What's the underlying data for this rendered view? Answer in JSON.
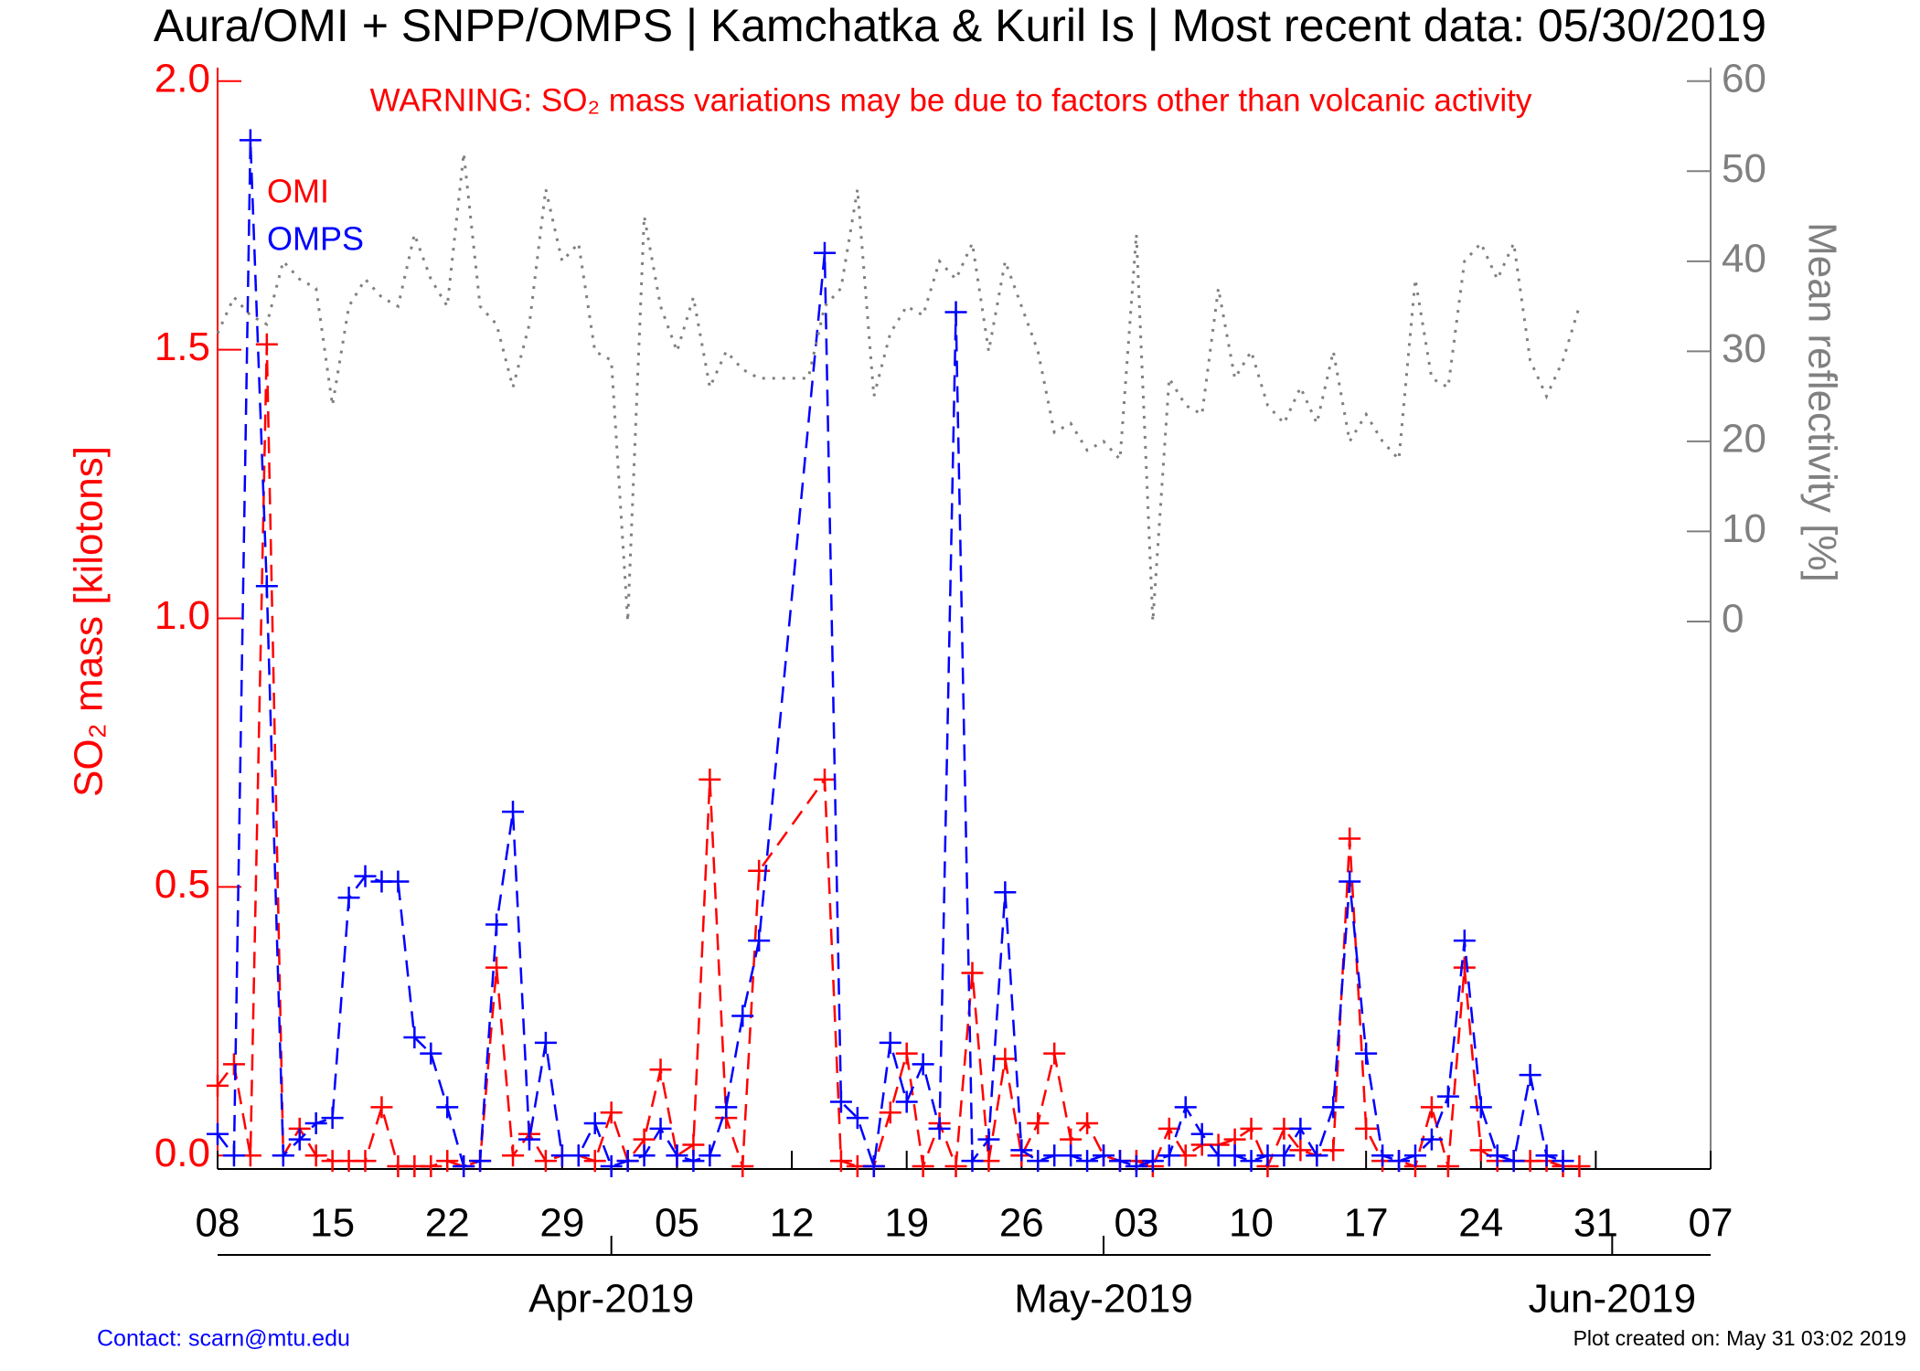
{
  "chart_data": {
    "type": "line",
    "title": "Aura/OMI + SNPP/OMPS | Kamchatka & Kuril Is | Most recent data: 05/30/2019",
    "annotation": "WARNING: SO₂ mass variations may be due to factors other than volcanic activity",
    "ylabel": "SO₂ mass [kilotons]",
    "y2label": "Mean reflectivity [%]",
    "footer_left": "Contact: scarn@mtu.edu",
    "footer_right": "Plot created on: May 31 03:02 2019",
    "xlim": [
      "2019-03-08",
      "2019-06-07"
    ],
    "xticks": [
      {
        "value": "2019-03-08",
        "label": "08"
      },
      {
        "value": "2019-03-15",
        "label": "15"
      },
      {
        "value": "2019-03-22",
        "label": "22"
      },
      {
        "value": "2019-03-29",
        "label": "29"
      },
      {
        "value": "2019-04-05",
        "label": "05"
      },
      {
        "value": "2019-04-12",
        "label": "12"
      },
      {
        "value": "2019-04-19",
        "label": "19"
      },
      {
        "value": "2019-04-26",
        "label": "26"
      },
      {
        "value": "2019-05-03",
        "label": "03"
      },
      {
        "value": "2019-05-10",
        "label": "10"
      },
      {
        "value": "2019-05-17",
        "label": "17"
      },
      {
        "value": "2019-05-24",
        "label": "24"
      },
      {
        "value": "2019-05-31",
        "label": "31"
      },
      {
        "value": "2019-06-07",
        "label": "07"
      }
    ],
    "month_ticks": [
      {
        "value": "2019-04-01",
        "label": "Apr-2019"
      },
      {
        "value": "2019-05-01",
        "label": "May-2019"
      },
      {
        "value": "2019-06-01",
        "label": "Jun-2019"
      }
    ],
    "ylim": [
      -0.025,
      2.025
    ],
    "yticks": [
      {
        "value": 0,
        "label": "0.0"
      },
      0.5,
      {
        "value": 1,
        "label": "1.0"
      },
      1.5,
      {
        "value": 2,
        "label": "2.0"
      }
    ],
    "y2lim": [
      -60.8,
      61.5
    ],
    "y2ticks": [
      0,
      10,
      20,
      30,
      40,
      50,
      60
    ],
    "ycolor": "#ff0000",
    "y2color": "#808080",
    "series": [
      {
        "name": "OMI",
        "color": "#ff0000",
        "dash": "dashed",
        "marker": "+",
        "x": [
          "2019-03-08",
          "2019-03-09",
          "2019-03-10",
          "2019-03-11",
          "2019-03-12",
          "2019-03-13",
          "2019-03-14",
          "2019-03-15",
          "2019-03-16",
          "2019-03-17",
          "2019-03-18",
          "2019-03-19",
          "2019-03-20",
          "2019-03-21",
          "2019-03-22",
          "2019-03-23",
          "2019-03-24",
          "2019-03-25",
          "2019-03-26",
          "2019-03-27",
          "2019-03-28",
          "2019-03-29",
          "2019-03-30",
          "2019-03-31",
          "2019-04-01",
          "2019-04-02",
          "2019-04-03",
          "2019-04-04",
          "2019-04-05",
          "2019-04-06",
          "2019-04-07",
          "2019-04-08",
          "2019-04-09",
          "2019-04-10",
          "2019-04-14",
          "2019-04-15",
          "2019-04-16",
          "2019-04-17",
          "2019-04-18",
          "2019-04-19",
          "2019-04-20",
          "2019-04-21",
          "2019-04-22",
          "2019-04-23",
          "2019-04-24",
          "2019-04-25",
          "2019-04-26",
          "2019-04-27",
          "2019-04-28",
          "2019-04-29",
          "2019-04-30",
          "2019-05-01",
          "2019-05-02",
          "2019-05-03",
          "2019-05-04",
          "2019-05-05",
          "2019-05-06",
          "2019-05-07",
          "2019-05-08",
          "2019-05-09",
          "2019-05-10",
          "2019-05-11",
          "2019-05-12",
          "2019-05-13",
          "2019-05-14",
          "2019-05-15",
          "2019-05-16",
          "2019-05-17",
          "2019-05-18",
          "2019-05-19",
          "2019-05-20",
          "2019-05-21",
          "2019-05-22",
          "2019-05-23",
          "2019-05-24",
          "2019-05-25",
          "2019-05-26",
          "2019-05-27",
          "2019-05-28",
          "2019-05-29",
          "2019-05-30"
        ],
        "values": [
          0.13,
          0.17,
          0.0,
          1.51,
          0.0,
          0.05,
          0.0,
          -0.01,
          -0.01,
          -0.01,
          0.09,
          -0.02,
          -0.02,
          -0.02,
          -0.01,
          -0.02,
          -0.01,
          0.35,
          0.0,
          0.04,
          -0.01,
          0.0,
          0.0,
          -0.01,
          0.08,
          -0.01,
          0.03,
          0.16,
          0.0,
          0.02,
          0.7,
          0.07,
          -0.02,
          0.53,
          0.7,
          -0.01,
          -0.02,
          -0.02,
          0.08,
          0.19,
          -0.02,
          0.06,
          -0.02,
          0.34,
          -0.01,
          0.18,
          0.0,
          0.06,
          0.19,
          0.03,
          0.06,
          0.0,
          -0.01,
          -0.01,
          -0.02,
          0.05,
          0.0,
          0.02,
          0.02,
          0.03,
          0.05,
          -0.02,
          0.05,
          0.01,
          0.0,
          0.01,
          0.59,
          0.05,
          -0.01,
          -0.01,
          -0.02,
          0.09,
          -0.02,
          0.35,
          0.01,
          -0.01,
          -0.01,
          -0.01,
          -0.01,
          -0.02,
          -0.02
        ]
      },
      {
        "name": "OMPS",
        "color": "#0000ff",
        "dash": "dashed",
        "marker": "+",
        "x": [
          "2019-03-08",
          "2019-03-09",
          "2019-03-10",
          "2019-03-11",
          "2019-03-12",
          "2019-03-13",
          "2019-03-14",
          "2019-03-15",
          "2019-03-16",
          "2019-03-17",
          "2019-03-18",
          "2019-03-19",
          "2019-03-20",
          "2019-03-21",
          "2019-03-22",
          "2019-03-23",
          "2019-03-24",
          "2019-03-25",
          "2019-03-26",
          "2019-03-27",
          "2019-03-28",
          "2019-03-29",
          "2019-03-30",
          "2019-03-31",
          "2019-04-01",
          "2019-04-02",
          "2019-04-03",
          "2019-04-04",
          "2019-04-05",
          "2019-04-06",
          "2019-04-07",
          "2019-04-08",
          "2019-04-09",
          "2019-04-10",
          "2019-04-14",
          "2019-04-15",
          "2019-04-16",
          "2019-04-17",
          "2019-04-18",
          "2019-04-19",
          "2019-04-20",
          "2019-04-21",
          "2019-04-22",
          "2019-04-23",
          "2019-04-24",
          "2019-04-25",
          "2019-04-26",
          "2019-04-27",
          "2019-04-28",
          "2019-04-29",
          "2019-04-30",
          "2019-05-01",
          "2019-05-02",
          "2019-05-03",
          "2019-05-04",
          "2019-05-05",
          "2019-05-06",
          "2019-05-07",
          "2019-05-08",
          "2019-05-09",
          "2019-05-10",
          "2019-05-11",
          "2019-05-12",
          "2019-05-13",
          "2019-05-14",
          "2019-05-15",
          "2019-05-16",
          "2019-05-17",
          "2019-05-18",
          "2019-05-19",
          "2019-05-20",
          "2019-05-21",
          "2019-05-22",
          "2019-05-23",
          "2019-05-24",
          "2019-05-25",
          "2019-05-26",
          "2019-05-27",
          "2019-05-28",
          "2019-05-29"
        ],
        "values": [
          0.04,
          0.0,
          1.89,
          1.06,
          0.0,
          0.03,
          0.06,
          0.07,
          0.48,
          0.52,
          0.51,
          0.51,
          0.22,
          0.19,
          0.09,
          -0.02,
          -0.01,
          0.43,
          0.64,
          0.03,
          0.21,
          0.0,
          0.0,
          0.06,
          -0.02,
          -0.01,
          0.0,
          0.05,
          0.0,
          -0.01,
          0.0,
          0.09,
          0.26,
          0.4,
          1.68,
          0.1,
          0.07,
          -0.02,
          0.21,
          0.1,
          0.17,
          0.05,
          1.57,
          -0.01,
          0.03,
          0.49,
          0.01,
          -0.01,
          0.0,
          0.0,
          -0.01,
          0.0,
          -0.01,
          -0.02,
          -0.01,
          0.0,
          0.09,
          0.04,
          0.0,
          0.0,
          -0.01,
          0.0,
          0.0,
          0.05,
          0.0,
          0.09,
          0.51,
          0.19,
          0.0,
          -0.01,
          0.0,
          0.03,
          0.11,
          0.4,
          0.09,
          0.0,
          -0.01,
          0.15,
          0.0,
          -0.01
        ]
      },
      {
        "color": "#808080",
        "dash": "dotted",
        "axis": "y2",
        "x": [
          "2019-03-08",
          "2019-03-09",
          "2019-03-10",
          "2019-03-11",
          "2019-03-12",
          "2019-03-13",
          "2019-03-14",
          "2019-03-15",
          "2019-03-16",
          "2019-03-17",
          "2019-03-18",
          "2019-03-19",
          "2019-03-20",
          "2019-03-21",
          "2019-03-22",
          "2019-03-23",
          "2019-03-24",
          "2019-03-25",
          "2019-03-26",
          "2019-03-27",
          "2019-03-28",
          "2019-03-29",
          "2019-03-30",
          "2019-03-31",
          "2019-04-01",
          "2019-04-02",
          "2019-04-03",
          "2019-04-04",
          "2019-04-05",
          "2019-04-06",
          "2019-04-07",
          "2019-04-08",
          "2019-04-09",
          "2019-04-10",
          "2019-04-11",
          "2019-04-12",
          "2019-04-13",
          "2019-04-14",
          "2019-04-15",
          "2019-04-16",
          "2019-04-17",
          "2019-04-18",
          "2019-04-19",
          "2019-04-20",
          "2019-04-21",
          "2019-04-22",
          "2019-04-23",
          "2019-04-24",
          "2019-04-25",
          "2019-04-26",
          "2019-04-27",
          "2019-04-28",
          "2019-04-29",
          "2019-04-30",
          "2019-05-01",
          "2019-05-02",
          "2019-05-03",
          "2019-05-04",
          "2019-05-05",
          "2019-05-06",
          "2019-05-07",
          "2019-05-08",
          "2019-05-09",
          "2019-05-10",
          "2019-05-11",
          "2019-05-12",
          "2019-05-13",
          "2019-05-14",
          "2019-05-15",
          "2019-05-16",
          "2019-05-17",
          "2019-05-18",
          "2019-05-19",
          "2019-05-20",
          "2019-05-21",
          "2019-05-22",
          "2019-05-23",
          "2019-05-24",
          "2019-05-25",
          "2019-05-26",
          "2019-05-27",
          "2019-05-28",
          "2019-05-29",
          "2019-05-30"
        ],
        "values": [
          32,
          36,
          34,
          33,
          40,
          38,
          37,
          24,
          35,
          38,
          36,
          35,
          43,
          38,
          35,
          52,
          35,
          33,
          26,
          33,
          48,
          40,
          42,
          30,
          29,
          0,
          45,
          35,
          30,
          36,
          26,
          30,
          28,
          27,
          27,
          27,
          27,
          35,
          37,
          48,
          25,
          32,
          35,
          34,
          40,
          38,
          42,
          30,
          40,
          35,
          30,
          21,
          22,
          19,
          20,
          18,
          43,
          0,
          27,
          24,
          23,
          37,
          27,
          30,
          24,
          22,
          26,
          22,
          30,
          20,
          23,
          20,
          18,
          38,
          27,
          26,
          40,
          42,
          38,
          42,
          29,
          25,
          29,
          35
        ]
      }
    ]
  }
}
